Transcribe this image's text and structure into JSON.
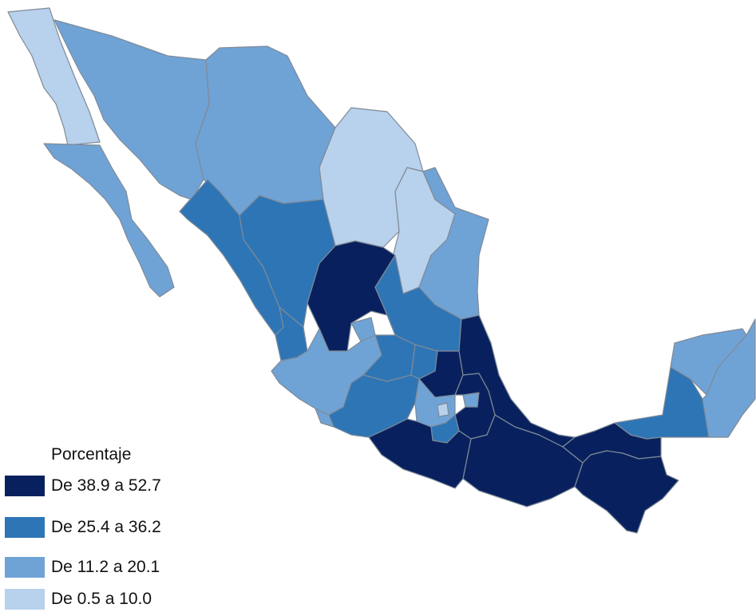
{
  "legend": {
    "title": "Porcentaje",
    "items": [
      {
        "label": "De 38.9 a 52.7",
        "color": "#08215e"
      },
      {
        "label": "De 25.4 a 36.2",
        "color": "#2e75b6"
      },
      {
        "label": "De 11.2 a 20.1",
        "color": "#6fa3d6"
      },
      {
        "label": "De 0.5 a 10.0",
        "color": "#b8d1ec"
      }
    ]
  },
  "regions": [
    {
      "name": "baja-california",
      "class": 3
    },
    {
      "name": "baja-california-sur",
      "class": 2
    },
    {
      "name": "sonora",
      "class": 2
    },
    {
      "name": "chihuahua",
      "class": 2
    },
    {
      "name": "coahuila",
      "class": 3
    },
    {
      "name": "nuevo-leon",
      "class": 3
    },
    {
      "name": "tamaulipas",
      "class": 2
    },
    {
      "name": "sinaloa",
      "class": 1
    },
    {
      "name": "durango",
      "class": 1
    },
    {
      "name": "zacatecas",
      "class": 0
    },
    {
      "name": "san-luis-potosi",
      "class": 1
    },
    {
      "name": "nayarit",
      "class": 1
    },
    {
      "name": "aguascalientes",
      "class": 2
    },
    {
      "name": "jalisco",
      "class": 2
    },
    {
      "name": "guanajuato",
      "class": 1
    },
    {
      "name": "queretaro",
      "class": 1
    },
    {
      "name": "hidalgo",
      "class": 0
    },
    {
      "name": "veracruz",
      "class": 0
    },
    {
      "name": "colima",
      "class": 2
    },
    {
      "name": "michoacan",
      "class": 1
    },
    {
      "name": "mexico",
      "class": 2
    },
    {
      "name": "cdmx",
      "class": 3
    },
    {
      "name": "tlaxcala",
      "class": 2
    },
    {
      "name": "puebla",
      "class": 0
    },
    {
      "name": "morelos",
      "class": 1
    },
    {
      "name": "guerrero",
      "class": 0
    },
    {
      "name": "oaxaca",
      "class": 0
    },
    {
      "name": "tabasco",
      "class": 0
    },
    {
      "name": "chiapas",
      "class": 0
    },
    {
      "name": "campeche",
      "class": 1
    },
    {
      "name": "yucatan",
      "class": 2
    },
    {
      "name": "quintana-roo",
      "class": 2
    }
  ]
}
